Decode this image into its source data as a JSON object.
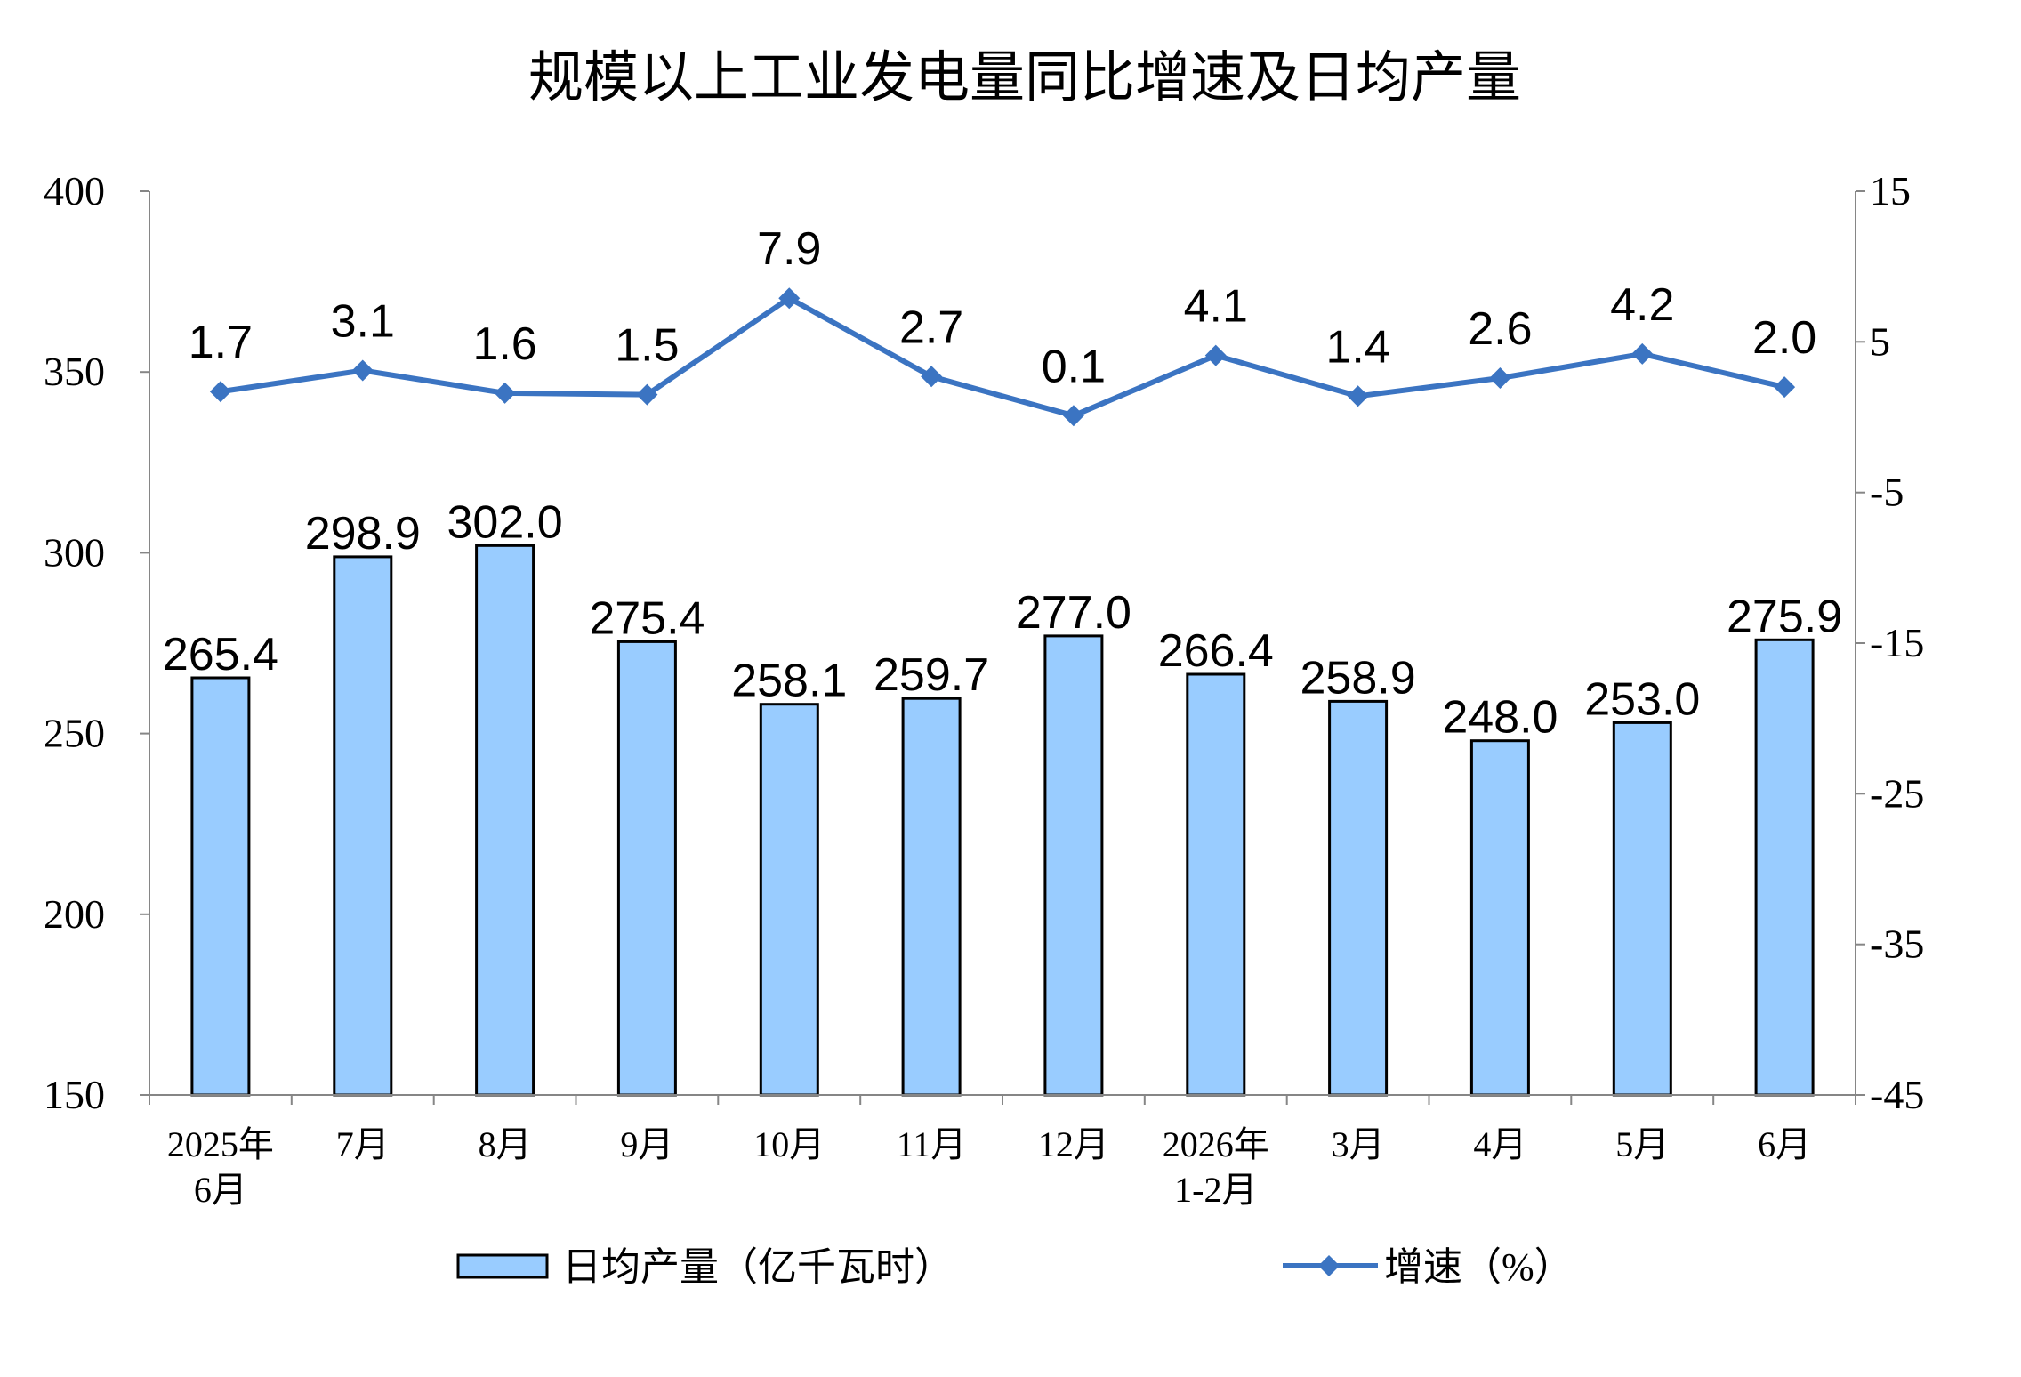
{
  "chart_data": {
    "type": "bar",
    "title": "规模以上工业发电量同比增速及日均产量",
    "categories": [
      "2025年\n6月",
      "7月",
      "8月",
      "9月",
      "10月",
      "11月",
      "12月",
      "2026年\n1-2月",
      "3月",
      "4月",
      "5月",
      "6月"
    ],
    "series": [
      {
        "name": "日均产量（亿千瓦时）",
        "type": "bar",
        "axis": "left",
        "color": "#99CCFF",
        "edge_color": "#000000",
        "values": [
          265.4,
          298.9,
          302.0,
          275.4,
          258.1,
          259.7,
          277.0,
          266.4,
          258.9,
          248.0,
          253.0,
          275.9
        ]
      },
      {
        "name": "增速（%）",
        "type": "line",
        "axis": "right",
        "color": "#3B74C2",
        "marker": "diamond",
        "values": [
          1.7,
          3.1,
          1.6,
          1.5,
          7.9,
          2.7,
          0.1,
          4.1,
          1.4,
          2.6,
          4.2,
          2.0
        ]
      }
    ],
    "y_left": {
      "lim": [
        150,
        400
      ],
      "ticks": [
        150,
        200,
        250,
        300,
        350,
        400
      ]
    },
    "y_right": {
      "lim": [
        -45,
        15
      ],
      "ticks": [
        -45,
        -35,
        -25,
        -15,
        -5,
        5,
        15
      ]
    },
    "data_labels": true,
    "grid": false,
    "legend": "bottom",
    "axis_color": "#868686"
  }
}
